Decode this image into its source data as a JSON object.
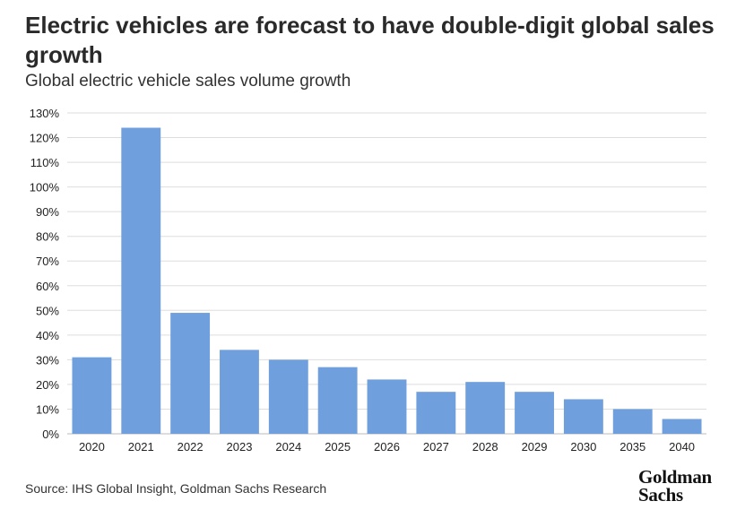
{
  "title": "Electric vehicles are forecast to have double-digit global sales growth",
  "subtitle": "Global electric vehicle sales volume growth",
  "source": "Source: IHS Global Insight, Goldman Sachs Research",
  "logo": {
    "line1": "Goldman",
    "line2": "Sachs"
  },
  "colors": {
    "bar": "#6f9fdc",
    "grid": "#dddddd",
    "text": "#222222"
  },
  "chart_data": {
    "type": "bar",
    "categories": [
      "2020",
      "2021",
      "2022",
      "2023",
      "2024",
      "2025",
      "2026",
      "2027",
      "2028",
      "2029",
      "2030",
      "2035",
      "2040"
    ],
    "values": [
      31,
      124,
      49,
      34,
      30,
      27,
      22,
      17,
      21,
      17,
      14,
      10,
      6
    ],
    "unit": "%",
    "ylim": [
      0,
      130
    ],
    "yticks": [
      0,
      10,
      20,
      30,
      40,
      50,
      60,
      70,
      80,
      90,
      100,
      110,
      120,
      130
    ],
    "ytick_labels": [
      "0%",
      "10%",
      "20%",
      "30%",
      "40%",
      "50%",
      "60%",
      "70%",
      "80%",
      "90%",
      "100%",
      "110%",
      "120%",
      "130%"
    ],
    "grid": true,
    "legend": "none"
  }
}
